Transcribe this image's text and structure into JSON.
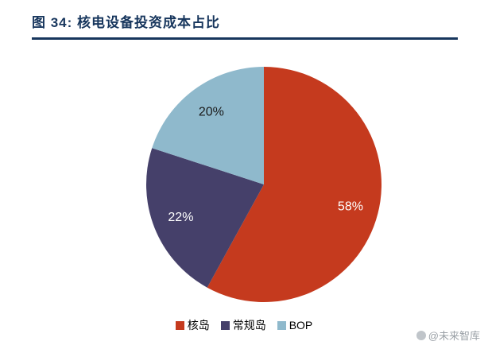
{
  "title": "图 34: 核电设备投资成本占比",
  "watermark": "@未来智库",
  "colors": {
    "accent": "#17365d",
    "background": "#ffffff",
    "watermark_text": "#9aa0a6"
  },
  "chart_data": {
    "type": "pie",
    "title": "核电设备投资成本占比",
    "categories": [
      "核岛",
      "常规岛",
      "BOP"
    ],
    "values": [
      58,
      22,
      20
    ],
    "data_labels": [
      "58%",
      "22%",
      "20%"
    ],
    "slice_colors": [
      "#c53a1e",
      "#45406a",
      "#8fb9cc"
    ],
    "label_colors": [
      "#ffffff",
      "#ffffff",
      "#1a1a1a"
    ],
    "start_angle": "top",
    "direction": "clockwise",
    "legend_position": "bottom"
  }
}
